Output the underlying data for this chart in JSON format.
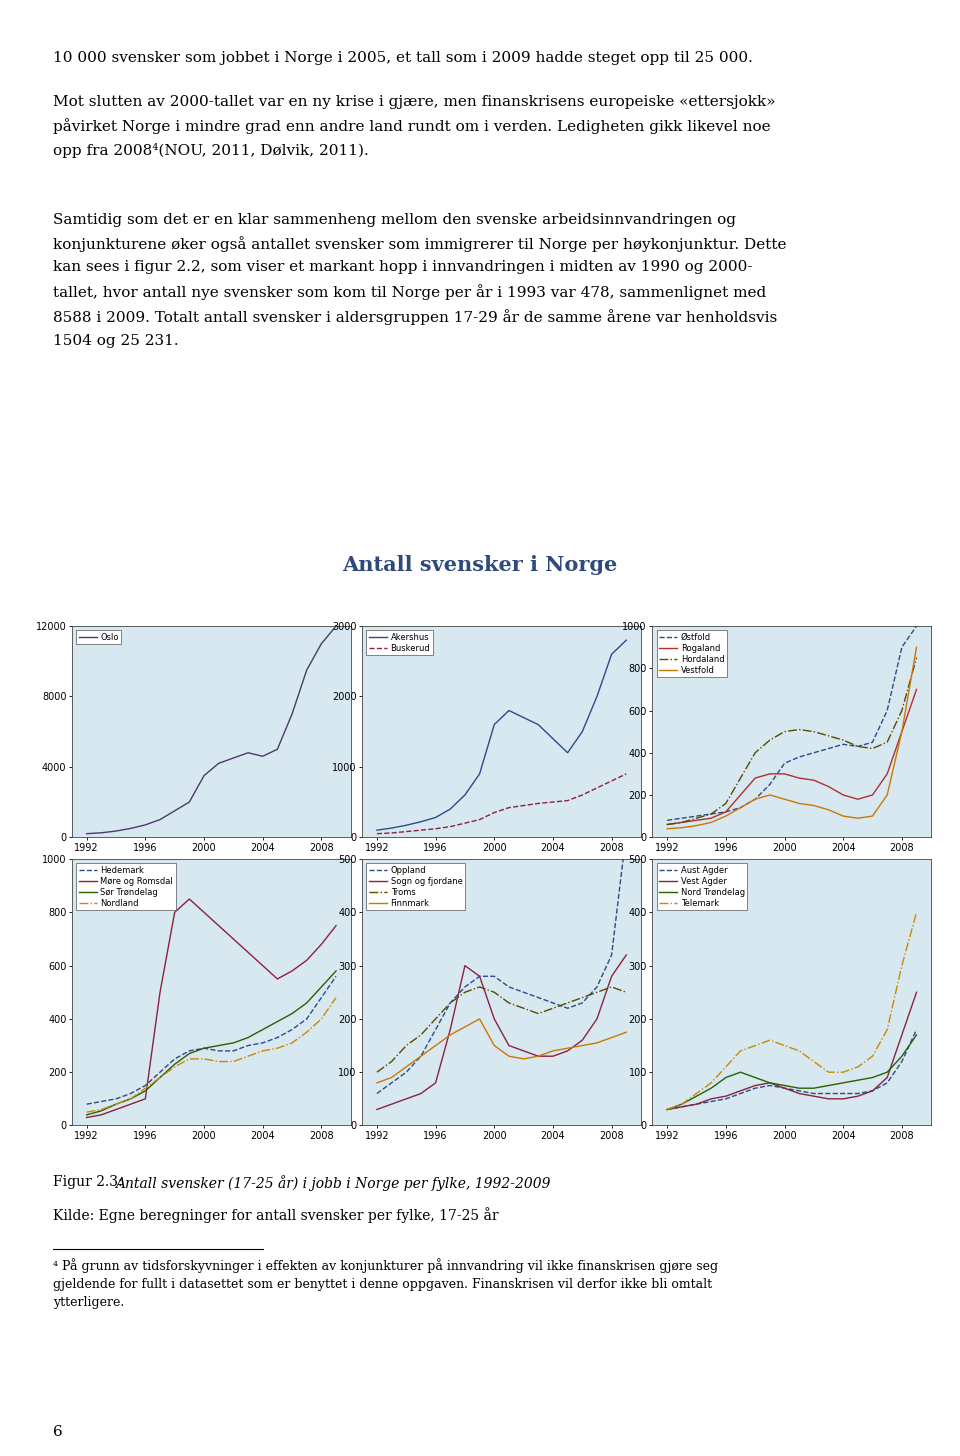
{
  "title": "Antall svensker i Norge",
  "title_color": "#2E4A7A",
  "background_color": "#D8E8F0",
  "years": [
    1992,
    1993,
    1994,
    1995,
    1996,
    1997,
    1998,
    1999,
    2000,
    2001,
    2002,
    2003,
    2004,
    2005,
    2006,
    2007,
    2008,
    2009
  ],
  "subplots": [
    {
      "ylim": [
        0,
        12000
      ],
      "yticks": [
        0,
        4000,
        8000,
        12000
      ],
      "series": [
        {
          "label": "Oslo",
          "color": "#4C3A6B",
          "linestyle": "solid",
          "data": [
            200,
            250,
            350,
            500,
            700,
            1000,
            1500,
            2000,
            3500,
            4200,
            4500,
            4800,
            4600,
            5000,
            7000,
            9500,
            11000,
            12000
          ]
        }
      ]
    },
    {
      "ylim": [
        0,
        3000
      ],
      "yticks": [
        0,
        1000,
        2000,
        3000
      ],
      "series": [
        {
          "label": "Akershus",
          "color": "#2C4B8A",
          "linestyle": "solid",
          "data": [
            100,
            130,
            170,
            220,
            280,
            400,
            600,
            900,
            1600,
            1800,
            1700,
            1600,
            1400,
            1200,
            1500,
            2000,
            2600,
            2800
          ]
        },
        {
          "label": "Buskerud",
          "color": "#8B2240",
          "linestyle": "dashed",
          "data": [
            50,
            60,
            80,
            100,
            120,
            150,
            200,
            250,
            350,
            420,
            450,
            480,
            500,
            520,
            600,
            700,
            800,
            900
          ]
        }
      ]
    },
    {
      "ylim": [
        0,
        1000
      ],
      "yticks": [
        0,
        200,
        400,
        600,
        800,
        1000
      ],
      "series": [
        {
          "label": "Østfold",
          "color": "#2C4B8A",
          "linestyle": "dashed",
          "data": [
            80,
            90,
            100,
            110,
            120,
            140,
            180,
            250,
            350,
            380,
            400,
            420,
            440,
            430,
            450,
            600,
            900,
            1000
          ]
        },
        {
          "label": "Rogaland",
          "color": "#B03030",
          "linestyle": "solid",
          "data": [
            60,
            70,
            80,
            90,
            120,
            200,
            280,
            300,
            300,
            280,
            270,
            240,
            200,
            180,
            200,
            300,
            500,
            700
          ]
        },
        {
          "label": "Hordaland",
          "color": "#5A4A00",
          "linestyle": "dashdot",
          "data": [
            60,
            70,
            90,
            110,
            160,
            280,
            400,
            460,
            500,
            510,
            500,
            480,
            460,
            430,
            420,
            450,
            600,
            850
          ]
        },
        {
          "label": "Vestfold",
          "color": "#CC7700",
          "linestyle": "solid",
          "data": [
            40,
            45,
            55,
            70,
            100,
            140,
            180,
            200,
            180,
            160,
            150,
            130,
            100,
            90,
            100,
            200,
            500,
            900
          ]
        }
      ]
    },
    {
      "ylim": [
        0,
        1000
      ],
      "yticks": [
        0,
        200,
        400,
        600,
        800,
        1000
      ],
      "series": [
        {
          "label": "Hedemark",
          "color": "#2C4B8A",
          "linestyle": "dashed",
          "data": [
            80,
            90,
            100,
            120,
            150,
            200,
            250,
            280,
            290,
            280,
            280,
            300,
            310,
            330,
            360,
            400,
            480,
            560
          ]
        },
        {
          "label": "Møre og Romsdal",
          "color": "#8B2240",
          "linestyle": "solid",
          "data": [
            30,
            40,
            60,
            80,
            100,
            500,
            800,
            850,
            800,
            750,
            700,
            650,
            600,
            550,
            580,
            620,
            680,
            750
          ]
        },
        {
          "label": "Sør Trøndelag",
          "color": "#2A6000",
          "linestyle": "solid",
          "data": [
            40,
            55,
            80,
            100,
            130,
            180,
            230,
            270,
            290,
            300,
            310,
            330,
            360,
            390,
            420,
            460,
            520,
            580
          ]
        },
        {
          "label": "Nordland",
          "color": "#CC8800",
          "linestyle": "dashdot",
          "data": [
            50,
            60,
            80,
            100,
            140,
            180,
            220,
            250,
            250,
            240,
            240,
            260,
            280,
            290,
            310,
            350,
            400,
            480
          ]
        }
      ]
    },
    {
      "ylim": [
        0,
        500
      ],
      "yticks": [
        0,
        100,
        200,
        300,
        400,
        500
      ],
      "series": [
        {
          "label": "Oppland",
          "color": "#2C4B8A",
          "linestyle": "dashed",
          "data": [
            60,
            80,
            100,
            130,
            180,
            230,
            260,
            280,
            280,
            260,
            250,
            240,
            230,
            220,
            230,
            260,
            320,
            550
          ]
        },
        {
          "label": "Sogn og fjordane",
          "color": "#8B2240",
          "linestyle": "solid",
          "data": [
            30,
            40,
            50,
            60,
            80,
            180,
            300,
            280,
            200,
            150,
            140,
            130,
            130,
            140,
            160,
            200,
            280,
            320
          ]
        },
        {
          "label": "Troms",
          "color": "#5A4A00",
          "linestyle": "dashdot",
          "data": [
            100,
            120,
            150,
            170,
            200,
            230,
            250,
            260,
            250,
            230,
            220,
            210,
            220,
            230,
            240,
            250,
            260,
            250
          ]
        },
        {
          "label": "Finnmark",
          "color": "#CC7700",
          "linestyle": "solid",
          "data": [
            80,
            90,
            110,
            130,
            150,
            170,
            185,
            200,
            150,
            130,
            125,
            130,
            140,
            145,
            150,
            155,
            165,
            175
          ]
        }
      ]
    },
    {
      "ylim": [
        0,
        500
      ],
      "yticks": [
        0,
        100,
        200,
        300,
        400,
        500
      ],
      "series": [
        {
          "label": "Aust Agder",
          "color": "#2C4B8A",
          "linestyle": "dashed",
          "data": [
            30,
            35,
            40,
            45,
            50,
            60,
            70,
            75,
            70,
            65,
            60,
            60,
            60,
            60,
            65,
            80,
            120,
            180
          ]
        },
        {
          "label": "Vest Agder",
          "color": "#8B2240",
          "linestyle": "solid",
          "data": [
            30,
            35,
            40,
            50,
            55,
            65,
            75,
            80,
            70,
            60,
            55,
            50,
            50,
            55,
            65,
            90,
            170,
            250
          ]
        },
        {
          "label": "Nord Trøndelag",
          "color": "#2A6000",
          "linestyle": "solid",
          "data": [
            30,
            40,
            55,
            70,
            90,
            100,
            90,
            80,
            75,
            70,
            70,
            75,
            80,
            85,
            90,
            100,
            130,
            170
          ]
        },
        {
          "label": "Telemark",
          "color": "#CC8800",
          "linestyle": "dashdot",
          "data": [
            30,
            40,
            60,
            80,
            110,
            140,
            150,
            160,
            150,
            140,
            120,
            100,
            100,
            110,
            130,
            180,
            300,
            400
          ]
        }
      ]
    }
  ],
  "para1": "10 000 svensker som jobbet i Norge i 2005, et tall som i 2009 hadde steget opp til 25 000.",
  "para2_lines": [
    "Mot slutten av 2000-tallet var en ny krise i gjære, men finanskrisens europeiske «ettersjokk»",
    "påvirket Norge i mindre grad enn andre land rundt om i verden. Ledigheten gikk likevel noe",
    "opp fra 2008⁴(NOU, 2011, Dølvik, 2011)."
  ],
  "para3_lines": [
    "Samtidig som det er en klar sammenheng mellom den svenske arbeidsinnvandringen og",
    "konjunkturene øker også antallet svensker som immigrerer til Norge per høykonjunktur. Dette",
    "kan sees i figur 2.2, som viser et markant hopp i innvandringen i midten av 1990 og 2000-",
    "tallet, hvor antall nye svensker som kom til Norge per år i 1993 var 478, sammenlignet med",
    "8588 i 2009. Totalt antall svensker i aldersgruppen 17-29 år de samme årene var henholdsvis",
    "1504 og 25 231."
  ],
  "caption_line1": "Figur 2.3: ",
  "caption_line1_italic": "Antall svensker (17-25 år) i jobb i Norge per fylke, 1992-2009",
  "caption_line2": "Kilde: Egne beregninger for antall svensker per fylke, 17-25 år",
  "footnote": "⁴ På grunn av tidsforskyvninger i effekten av konjunkturer på innvandring vil ikke finanskrisen gjøre seg\ngjeldende for fullt i datasettet som er benyttet i denne oppgaven. Finanskrisen vil derfor ikke bli omtalt\nytterligere.",
  "page_number": "6"
}
